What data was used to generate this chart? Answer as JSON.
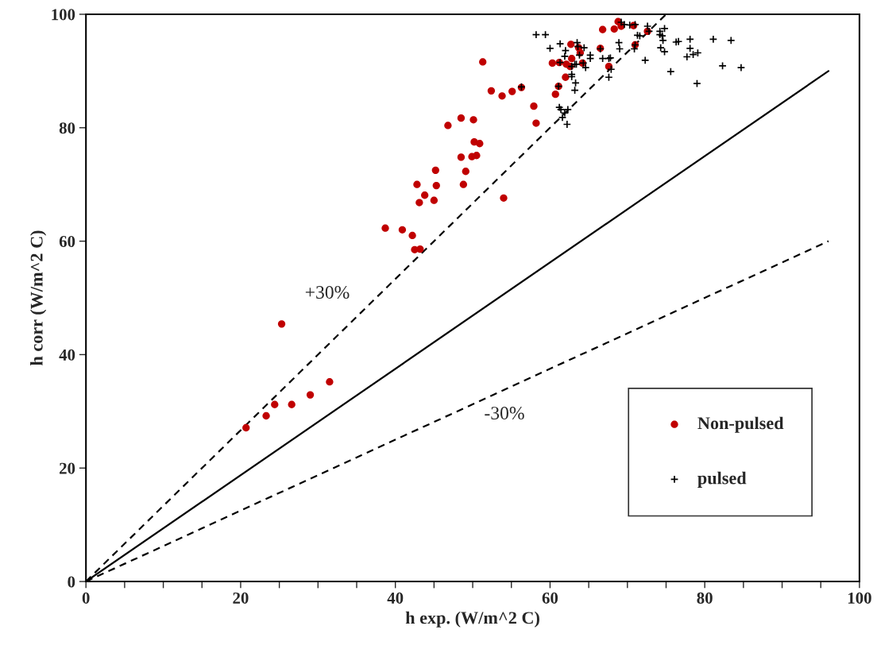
{
  "chart_data": {
    "type": "scatter",
    "xlabel": "h exp. (W/m^2 C)",
    "ylabel": "h corr (W/m^2 C)",
    "xlim": [
      0,
      100
    ],
    "ylim": [
      0,
      100
    ],
    "xticks": [
      0,
      {
        "value": 5,
        "label": null
      },
      20,
      {
        "value": 10,
        "label": null
      },
      {
        "value": 15,
        "label": null
      },
      {
        "value": 25,
        "label": null
      },
      {
        "value": 30,
        "label": null
      },
      {
        "value": 35,
        "label": null
      },
      40,
      {
        "value": 45,
        "label": null
      },
      {
        "value": 50,
        "label": null
      },
      {
        "value": 55,
        "label": null
      },
      60,
      {
        "value": 65,
        "label": null
      },
      {
        "value": 70,
        "label": null
      },
      {
        "value": 75,
        "label": null
      },
      80,
      {
        "value": 85,
        "label": null
      },
      {
        "value": 90,
        "label": null
      },
      {
        "value": 95,
        "label": null
      },
      100
    ],
    "yticks": [
      0,
      20,
      40,
      60,
      80,
      100
    ],
    "grid": false,
    "legend": "bottom right",
    "annotations": [
      "+30%",
      "-30%"
    ],
    "series": [
      {
        "name": "Non-pulsed",
        "marker": "circle",
        "color": "#c00000",
        "x": [
          25.3,
          31.5,
          29.0,
          26.6,
          24.4,
          23.3,
          20.7,
          51.3,
          52.4,
          53.8,
          55.1,
          56.3,
          57.9,
          58.2,
          46.8,
          48.5,
          50.1,
          50.2,
          50.9,
          48.5,
          49.9,
          50.5,
          45.2,
          49.1,
          42.8,
          45.3,
          48.8,
          43.8,
          43.1,
          45.0,
          54.0,
          38.7,
          40.9,
          42.2,
          42.5,
          43.2,
          68.8,
          69.2,
          70.8,
          66.8,
          68.3,
          72.6,
          62.7,
          63.7,
          63.9,
          66.5,
          60.3,
          61.2,
          62.1,
          62.8,
          62.6,
          64.2,
          67.6,
          71.0,
          62.0,
          61.1,
          60.7
        ],
        "values": [
          45.4,
          35.2,
          32.9,
          31.2,
          31.2,
          29.2,
          27.1,
          91.6,
          86.5,
          85.6,
          86.4,
          87.1,
          83.8,
          80.8,
          80.4,
          81.7,
          81.4,
          77.5,
          77.2,
          74.8,
          74.9,
          75.1,
          72.5,
          72.3,
          70.0,
          69.8,
          70.0,
          68.1,
          66.8,
          67.2,
          67.6,
          62.3,
          62.0,
          61.0,
          58.5,
          58.6,
          98.7,
          97.9,
          98.0,
          97.3,
          97.4,
          97.0,
          94.7,
          94.1,
          93.2,
          94.0,
          91.4,
          91.5,
          91.2,
          92.2,
          90.8,
          91.4,
          90.8,
          94.6,
          88.9,
          87.3,
          85.9
        ]
      },
      {
        "name": "pulsed",
        "marker": "cross",
        "color": "#000000",
        "x": [
          58.2,
          59.4,
          60.0,
          61.3,
          62.0,
          61.9,
          63.5,
          63.6,
          64.4,
          63.8,
          61.3,
          63.2,
          62.8,
          63.4,
          64.3,
          64.6,
          65.2,
          65.2,
          62.8,
          62.8,
          63.3,
          63.2,
          61.2,
          61.4,
          62.3,
          61.9,
          61.6,
          62.2,
          56.3,
          61.1,
          66.5,
          66.8,
          67.8,
          67.6,
          67.9,
          67.6,
          68.9,
          69.0,
          70.9,
          71.0,
          71.3,
          71.6,
          69.2,
          69.6,
          70.3,
          71.0,
          72.6,
          72.8,
          74.2,
          74.8,
          74.2,
          74.5,
          74.6,
          74.3,
          74.8,
          72.3,
          76.3,
          76.6,
          78.1,
          78.1,
          77.7,
          78.5,
          79.1,
          81.1,
          83.4,
          82.3,
          84.7,
          75.6,
          79.0
        ],
        "values": [
          96.4,
          96.4,
          94.0,
          94.8,
          93.6,
          92.6,
          95.0,
          94.3,
          94.1,
          92.8,
          91.5,
          91.2,
          90.8,
          91.2,
          91.4,
          90.6,
          92.8,
          92.2,
          89.4,
          89.0,
          87.9,
          86.6,
          83.6,
          83.2,
          83.2,
          82.6,
          81.8,
          80.6,
          87.2,
          87.3,
          93.9,
          92.2,
          92.3,
          92.2,
          90.3,
          88.9,
          95.0,
          93.9,
          93.9,
          94.6,
          96.3,
          96.2,
          98.6,
          98.2,
          98.1,
          98.2,
          97.9,
          97.0,
          97.0,
          97.5,
          96.4,
          96.2,
          95.4,
          94.1,
          93.4,
          91.9,
          95.1,
          95.2,
          95.6,
          94.0,
          92.5,
          92.9,
          93.2,
          95.6,
          95.4,
          90.9,
          90.6,
          89.9,
          87.8
        ]
      },
      {
        "type": "line",
        "line_style": "solid",
        "color": "#000000",
        "x": [
          0,
          96
        ],
        "values": [
          0,
          90
        ]
      },
      {
        "type": "line",
        "line_style": "dashed",
        "color": "#000000",
        "x": [
          0,
          75
        ],
        "values": [
          0,
          100
        ]
      },
      {
        "type": "line",
        "line_style": "dashed",
        "color": "#000000",
        "x": [
          0,
          96
        ],
        "values": [
          0,
          60
        ]
      }
    ]
  }
}
